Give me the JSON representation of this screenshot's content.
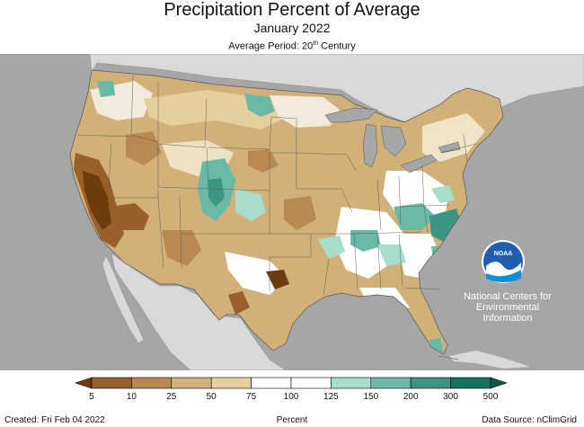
{
  "header": {
    "title": "Precipitation Percent of Average",
    "subtitle": "January 2022",
    "period_prefix": "Average Period: 20",
    "period_sup": "th",
    "period_suffix": " Century"
  },
  "logo": {
    "text": "NOAA",
    "lines": [
      "National Centers for",
      "Environmental",
      "Information"
    ]
  },
  "legend": {
    "labels": [
      "5",
      "10",
      "25",
      "50",
      "75",
      "100",
      "125",
      "150",
      "200",
      "300",
      "500"
    ],
    "colors": [
      "#6b3c0e",
      "#98602a",
      "#b88a52",
      "#d2b07a",
      "#e6cf9f",
      "#ffffff",
      "#ffffff",
      "#a8dccd",
      "#6ab9a6",
      "#3d9683",
      "#17735f",
      "#0f5848"
    ],
    "unit": "Percent"
  },
  "footer": {
    "created": "Created: Fri Feb 04 2022",
    "source": "Data Source: nClimGrid"
  },
  "map": {
    "ocean_color": "#a6a6a6",
    "land_color": "#d9d9d9",
    "lakes_color": "#a6a6a6"
  }
}
